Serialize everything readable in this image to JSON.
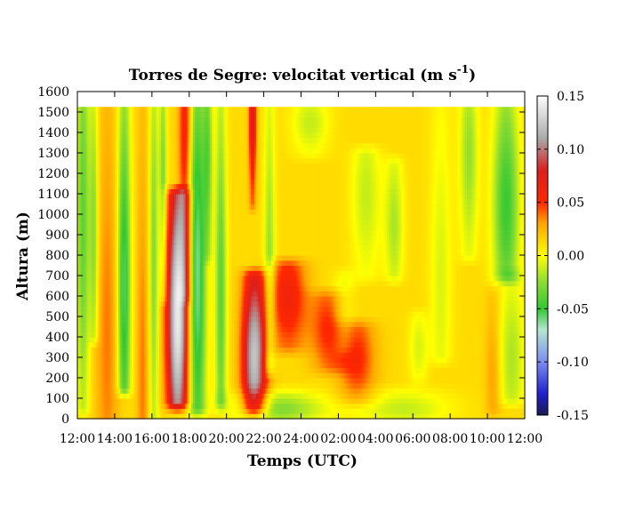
{
  "chart_data": {
    "type": "heatmap",
    "title": "Torres de Segre: velocitat vertical (m s",
    "title_exponent": "-1",
    "title_close": ")",
    "xlabel": "Temps (UTC)",
    "ylabel": "Altura (m)",
    "x_ticks": [
      "12:00",
      "14:00",
      "16:00",
      "18:00",
      "20:00",
      "22:00",
      "24:00",
      "02:00",
      "04:00",
      "06:00",
      "08:00",
      "10:00",
      "12:00"
    ],
    "x_range_hours": [
      0,
      24
    ],
    "y_ticks": [
      0,
      100,
      200,
      300,
      400,
      500,
      600,
      700,
      800,
      900,
      1000,
      1100,
      1200,
      1300,
      1400,
      1500,
      1600
    ],
    "ylim": [
      0,
      1600
    ],
    "data_top_height": 1525,
    "colorbar": {
      "min": -0.15,
      "max": 0.15,
      "ticks": [
        "0.15",
        "0.10",
        "0.05",
        "0.00",
        "-0.05",
        "-0.10",
        "-0.15"
      ],
      "colors": [
        {
          "v": -0.15,
          "c": "#1a1a50"
        },
        {
          "v": -0.13,
          "c": "#2020d0"
        },
        {
          "v": -0.1,
          "c": "#7d8cf0"
        },
        {
          "v": -0.07,
          "c": "#b4e6d2"
        },
        {
          "v": -0.05,
          "c": "#32c832"
        },
        {
          "v": -0.025,
          "c": "#8cdc32"
        },
        {
          "v": 0.0,
          "c": "#ffff00"
        },
        {
          "v": 0.03,
          "c": "#ffa500"
        },
        {
          "v": 0.05,
          "c": "#ff2800"
        },
        {
          "v": 0.08,
          "c": "#dc1e1e"
        },
        {
          "v": 0.11,
          "c": "#aaaaaa"
        },
        {
          "v": 0.15,
          "c": "#ffffff"
        }
      ]
    },
    "features": [
      {
        "t": 0.3,
        "h0": 50,
        "h1": 1525,
        "w": 0.35,
        "a": -0.05,
        "peak": 1000
      },
      {
        "t": 0.9,
        "h0": 400,
        "h1": 1525,
        "w": 0.25,
        "a": -0.04,
        "peak": 900
      },
      {
        "t": 1.6,
        "h0": 0,
        "h1": 1525,
        "w": 0.6,
        "a": 0.025,
        "peak": 400
      },
      {
        "t": 2.5,
        "h0": 150,
        "h1": 1525,
        "w": 0.35,
        "a": -0.07,
        "peak": 650
      },
      {
        "t": 3.5,
        "h0": 0,
        "h1": 1525,
        "w": 0.3,
        "a": 0.025,
        "peak": 200
      },
      {
        "t": 4.1,
        "h0": 0,
        "h1": 1525,
        "w": 0.25,
        "a": -0.04,
        "peak": 800
      },
      {
        "t": 4.6,
        "h0": 600,
        "h1": 1525,
        "w": 0.2,
        "a": -0.04,
        "peak": 1200
      },
      {
        "t": 5.4,
        "h0": 80,
        "h1": 1100,
        "w": 0.6,
        "a": 0.13,
        "peak": 500
      },
      {
        "t": 6.4,
        "h0": 50,
        "h1": 1525,
        "w": 0.5,
        "a": -0.08,
        "peak": 700
      },
      {
        "t": 5.8,
        "h0": 600,
        "h1": 1525,
        "w": 0.35,
        "a": 0.055,
        "peak": 1400
      },
      {
        "t": 7.7,
        "h0": 80,
        "h1": 1525,
        "w": 0.3,
        "a": -0.05,
        "peak": 600
      },
      {
        "t": 7.0,
        "h0": 800,
        "h1": 1525,
        "w": 0.25,
        "a": -0.04,
        "peak": 1300
      },
      {
        "t": 9.5,
        "h0": 50,
        "h1": 700,
        "w": 0.65,
        "a": 0.11,
        "peak": 300
      },
      {
        "t": 9.4,
        "h0": 1050,
        "h1": 1525,
        "w": 0.2,
        "a": 0.07,
        "peak": 1450
      },
      {
        "t": 10.3,
        "h0": 250,
        "h1": 1525,
        "w": 0.3,
        "a": -0.035,
        "peak": 700
      },
      {
        "t": 10.8,
        "h0": 0,
        "h1": 120,
        "w": 2.5,
        "a": -0.04,
        "peak": 50
      },
      {
        "t": 11.3,
        "h0": 350,
        "h1": 750,
        "w": 1.0,
        "a": 0.05,
        "peak": 600
      },
      {
        "t": 12.5,
        "h0": 1300,
        "h1": 1525,
        "w": 1.0,
        "a": -0.025,
        "peak": 1450
      },
      {
        "t": 13.5,
        "h0": 250,
        "h1": 600,
        "w": 1.0,
        "a": 0.04,
        "peak": 450
      },
      {
        "t": 14.3,
        "h0": 350,
        "h1": 700,
        "w": 0.6,
        "a": -0.02,
        "peak": 500
      },
      {
        "t": 15.0,
        "h0": 100,
        "h1": 450,
        "w": 1.0,
        "a": 0.04,
        "peak": 300
      },
      {
        "t": 15.5,
        "h0": 700,
        "h1": 1300,
        "w": 0.8,
        "a": -0.025,
        "peak": 1100
      },
      {
        "t": 17.5,
        "h0": 0,
        "h1": 130,
        "w": 2.5,
        "a": -0.025,
        "peak": 50
      },
      {
        "t": 17.0,
        "h0": 700,
        "h1": 1250,
        "w": 0.5,
        "a": -0.03,
        "peak": 950
      },
      {
        "t": 18.3,
        "h0": 200,
        "h1": 500,
        "w": 0.5,
        "a": -0.02,
        "peak": 350
      },
      {
        "t": 19.5,
        "h0": 300,
        "h1": 1525,
        "w": 0.6,
        "a": -0.02,
        "peak": 700
      },
      {
        "t": 21.0,
        "h0": 800,
        "h1": 1525,
        "w": 0.5,
        "a": -0.035,
        "peak": 1300
      },
      {
        "t": 23.0,
        "h0": 700,
        "h1": 1525,
        "w": 0.7,
        "a": -0.06,
        "peak": 1050
      },
      {
        "t": 23.3,
        "h0": 100,
        "h1": 700,
        "w": 0.7,
        "a": -0.03,
        "peak": 300
      },
      {
        "t": 22.3,
        "h0": 50,
        "h1": 600,
        "w": 0.4,
        "a": 0.02,
        "peak": 200
      }
    ]
  }
}
